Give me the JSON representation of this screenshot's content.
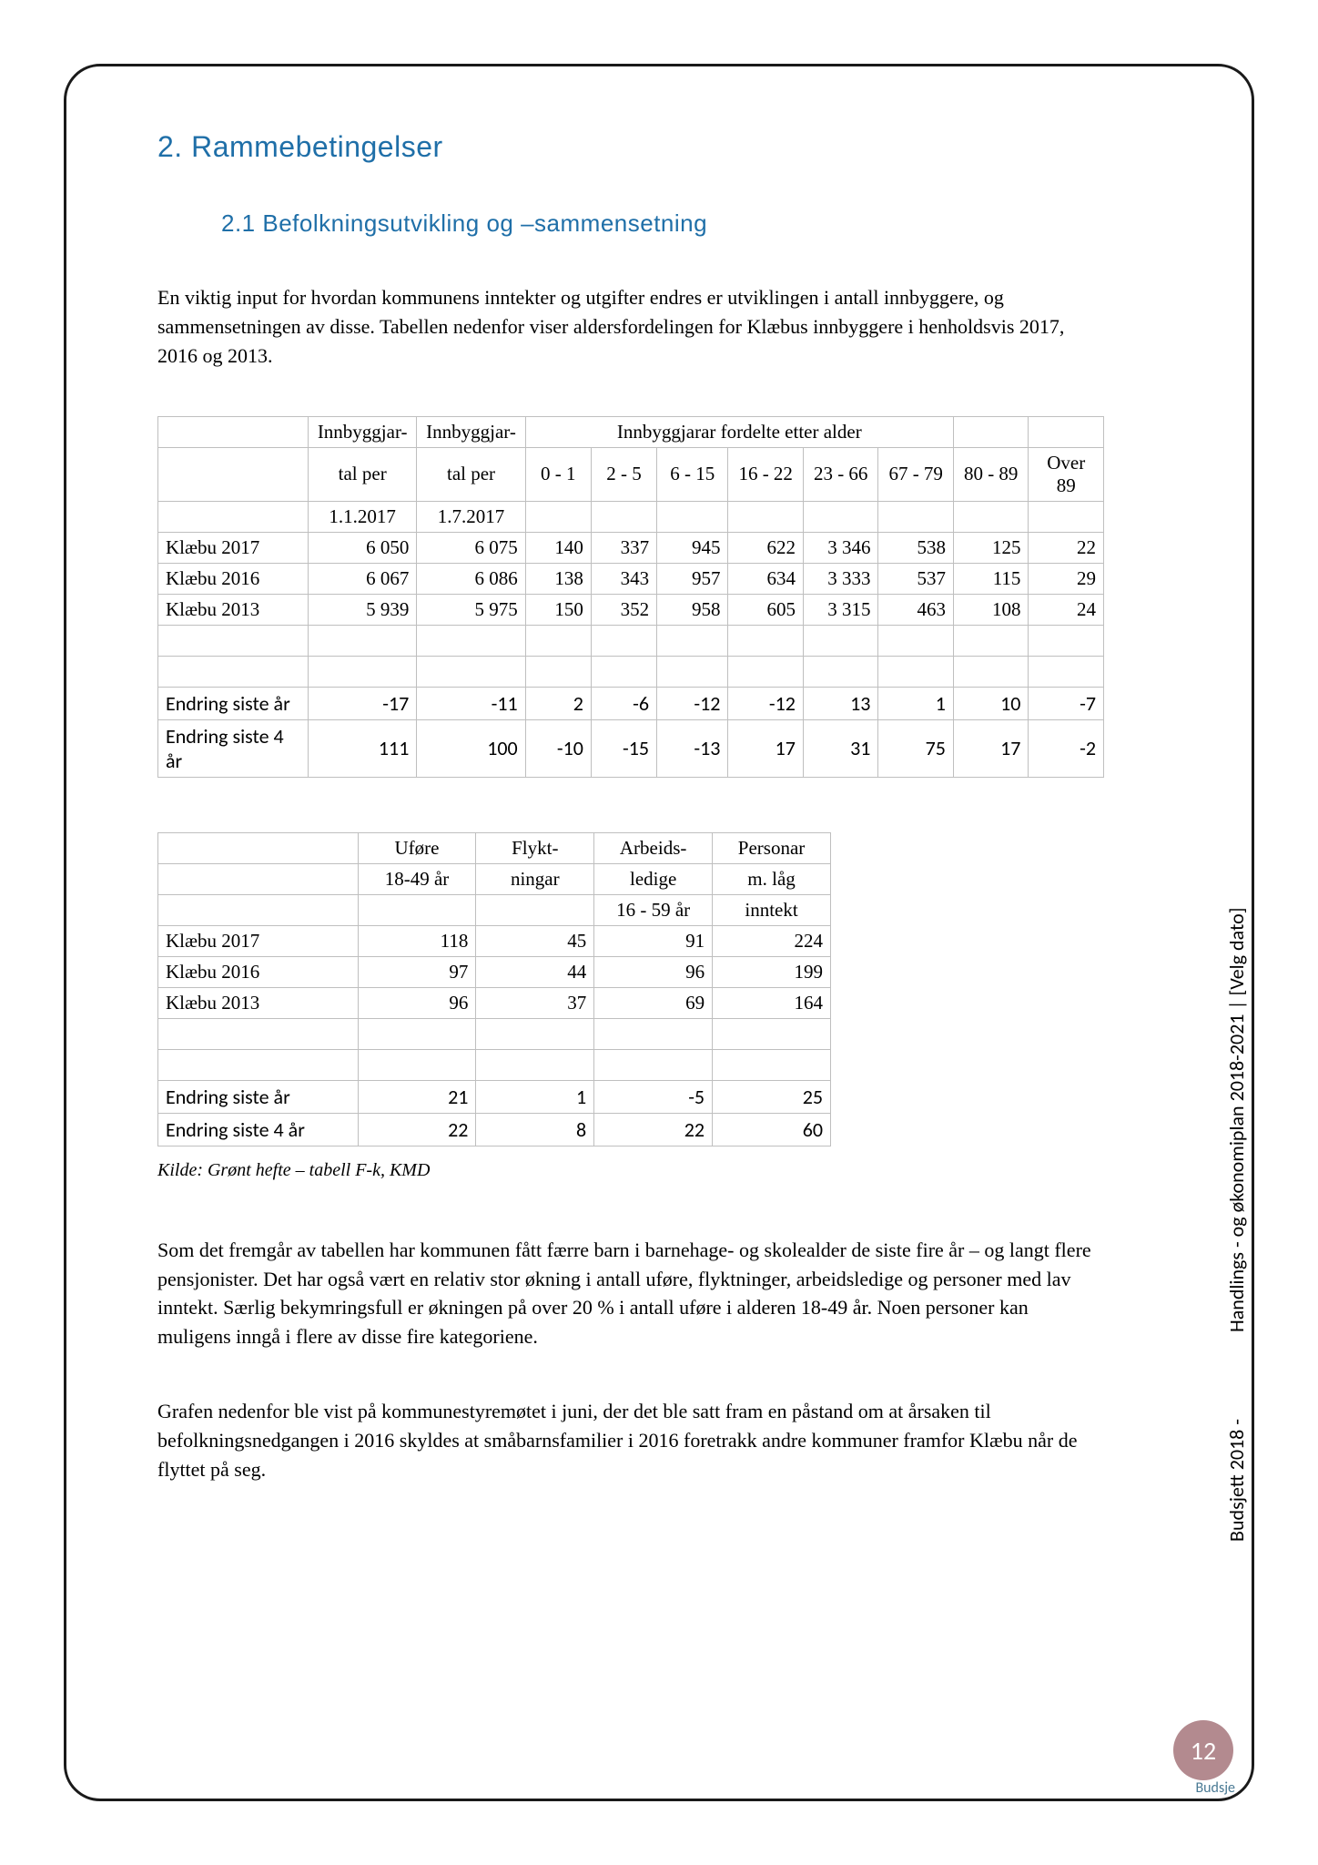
{
  "section_title": "2. Rammebetingelser",
  "subsection_title": "2.1 Befolkningsutvikling og –sammensetning",
  "intro_para": "En viktig input for hvordan kommunens inntekter og utgifter endres er utviklingen i antall innbyggere, og sammensetningen av disse. Tabellen nedenfor viser aldersfordelingen for Klæbus innbyggere i henholdsvis 2017, 2016 og 2013.",
  "table1": {
    "head_col1a": "Innbyggjar-",
    "head_col1b": "Innbyggjar-",
    "head_span": "Innbyggjarar fordelte etter alder",
    "sub1a": "tal per",
    "sub1b": "tal per",
    "ages": [
      "0 - 1",
      "2 - 5",
      "6 - 15",
      "16 - 22",
      "23 - 66",
      "67 - 79",
      "80 - 89",
      "Over 89"
    ],
    "date1": "1.1.2017",
    "date2": "1.7.2017",
    "rows": [
      {
        "label": "Klæbu 2017",
        "v": [
          "6 050",
          "6 075",
          "140",
          "337",
          "945",
          "622",
          "3 346",
          "538",
          "125",
          "22"
        ]
      },
      {
        "label": "Klæbu 2016",
        "v": [
          "6 067",
          "6 086",
          "138",
          "343",
          "957",
          "634",
          "3 333",
          "537",
          "115",
          "29"
        ]
      },
      {
        "label": "Klæbu 2013",
        "v": [
          "5 939",
          "5 975",
          "150",
          "352",
          "958",
          "605",
          "3 315",
          "463",
          "108",
          "24"
        ]
      }
    ],
    "summary": [
      {
        "label": "Endring siste år",
        "v": [
          "-17",
          "-11",
          "2",
          "-6",
          "-12",
          "-12",
          "13",
          "1",
          "10",
          "-7"
        ]
      },
      {
        "label": "Endring siste 4 år",
        "v": [
          "111",
          "100",
          "-10",
          "-15",
          "-13",
          "17",
          "31",
          "75",
          "17",
          "-2"
        ]
      }
    ]
  },
  "table2": {
    "head": [
      "Uføre",
      "Flykt-",
      "Arbeids-",
      "Personar"
    ],
    "sub1": [
      "18-49 år",
      "ningar",
      "ledige",
      "m. låg"
    ],
    "sub2": [
      "",
      "",
      "16 - 59 år",
      "inntekt"
    ],
    "rows": [
      {
        "label": "Klæbu 2017",
        "v": [
          "118",
          "45",
          "91",
          "224"
        ]
      },
      {
        "label": "Klæbu 2016",
        "v": [
          "97",
          "44",
          "96",
          "199"
        ]
      },
      {
        "label": "Klæbu 2013",
        "v": [
          "96",
          "37",
          "69",
          "164"
        ]
      }
    ],
    "summary": [
      {
        "label": "Endring siste år",
        "v": [
          "21",
          "1",
          "-5",
          "25"
        ]
      },
      {
        "label": "Endring siste 4 år",
        "v": [
          "22",
          "8",
          "22",
          "60"
        ]
      }
    ]
  },
  "source": "Kilde: Grønt hefte – tabell F-k, KMD",
  "para2": "Som det fremgår av tabellen har kommunen fått færre barn i barnehage- og skolealder de siste fire år – og langt flere pensjonister. Det har også vært en relativ stor økning i antall uføre, flyktninger, arbeidsledige og personer med lav inntekt. Særlig bekymringsfull er økningen på over 20 % i antall uføre i alderen 18-49 år. Noen personer kan muligens inngå i flere av disse fire kategoriene.",
  "para3": "Grafen nedenfor ble vist på kommunestyremøtet i juni, der det ble satt fram en påstand om at årsaken til befolkningsnedgangen i 2016 skyldes at småbarnsfamilier i 2016 foretrakk andre kommuner framfor Klæbu når de flyttet på seg.",
  "side1": "Budsjett 2018 -",
  "side2": "Handlings - og økonomiplan 2018-2021 |  [Velg dato]",
  "pagenum": "12",
  "page_under": "Budsje"
}
